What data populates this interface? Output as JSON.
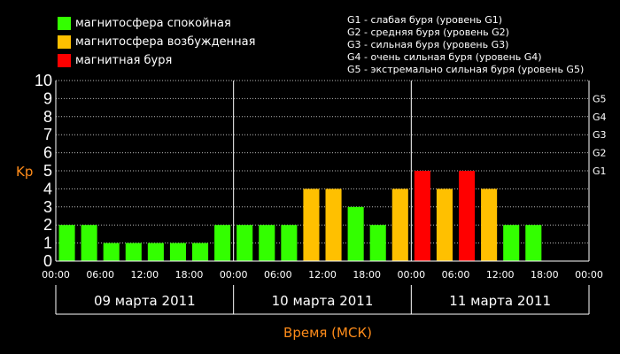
{
  "legend": [
    {
      "label": "магнитосфера спокойная",
      "color": "#33ff00"
    },
    {
      "label": "магнитосфера возбужденная",
      "color": "#ffc000"
    },
    {
      "label": "магнитная буря",
      "color": "#ff0000"
    }
  ],
  "g_levels": [
    "G1 - слабая буря (уровень G1)",
    "G2 - средняя буря (уровень G2)",
    "G3 - сильная буря (уровень G3)",
    "G4 - очень сильная буря (уровень G4)",
    "G5 - экстремально сильная буря (уровень G5)"
  ],
  "chart_data": {
    "type": "bar",
    "title": "",
    "ylabel": "Kp",
    "xlabel": "Время (МСК)",
    "ylim": [
      0,
      10
    ],
    "yticks": [
      "0",
      "1",
      "2",
      "3",
      "4",
      "5",
      "6",
      "7",
      "8",
      "9",
      "10"
    ],
    "right_ticks": [
      {
        "label": "G1",
        "value": 5
      },
      {
        "label": "G2",
        "value": 6
      },
      {
        "label": "G3",
        "value": 7
      },
      {
        "label": "G4",
        "value": 8
      },
      {
        "label": "G5",
        "value": 9
      }
    ],
    "xticks": [
      "00:00",
      "06:00",
      "12:00",
      "18:00",
      "00:00",
      "06:00",
      "12:00",
      "18:00",
      "00:00",
      "06:00",
      "12:00",
      "18:00",
      "00:00"
    ],
    "days": [
      "09 марта 2011",
      "10 марта 2011",
      "11 марта 2011"
    ],
    "values": [
      2,
      2,
      1,
      1,
      1,
      1,
      1,
      2,
      2,
      2,
      2,
      4,
      4,
      3,
      2,
      4,
      5,
      4,
      5,
      4,
      2,
      2
    ],
    "colors": {
      "quiet": "#33ff00",
      "active": "#ffc000",
      "storm": "#ff0000"
    },
    "grid": true
  }
}
